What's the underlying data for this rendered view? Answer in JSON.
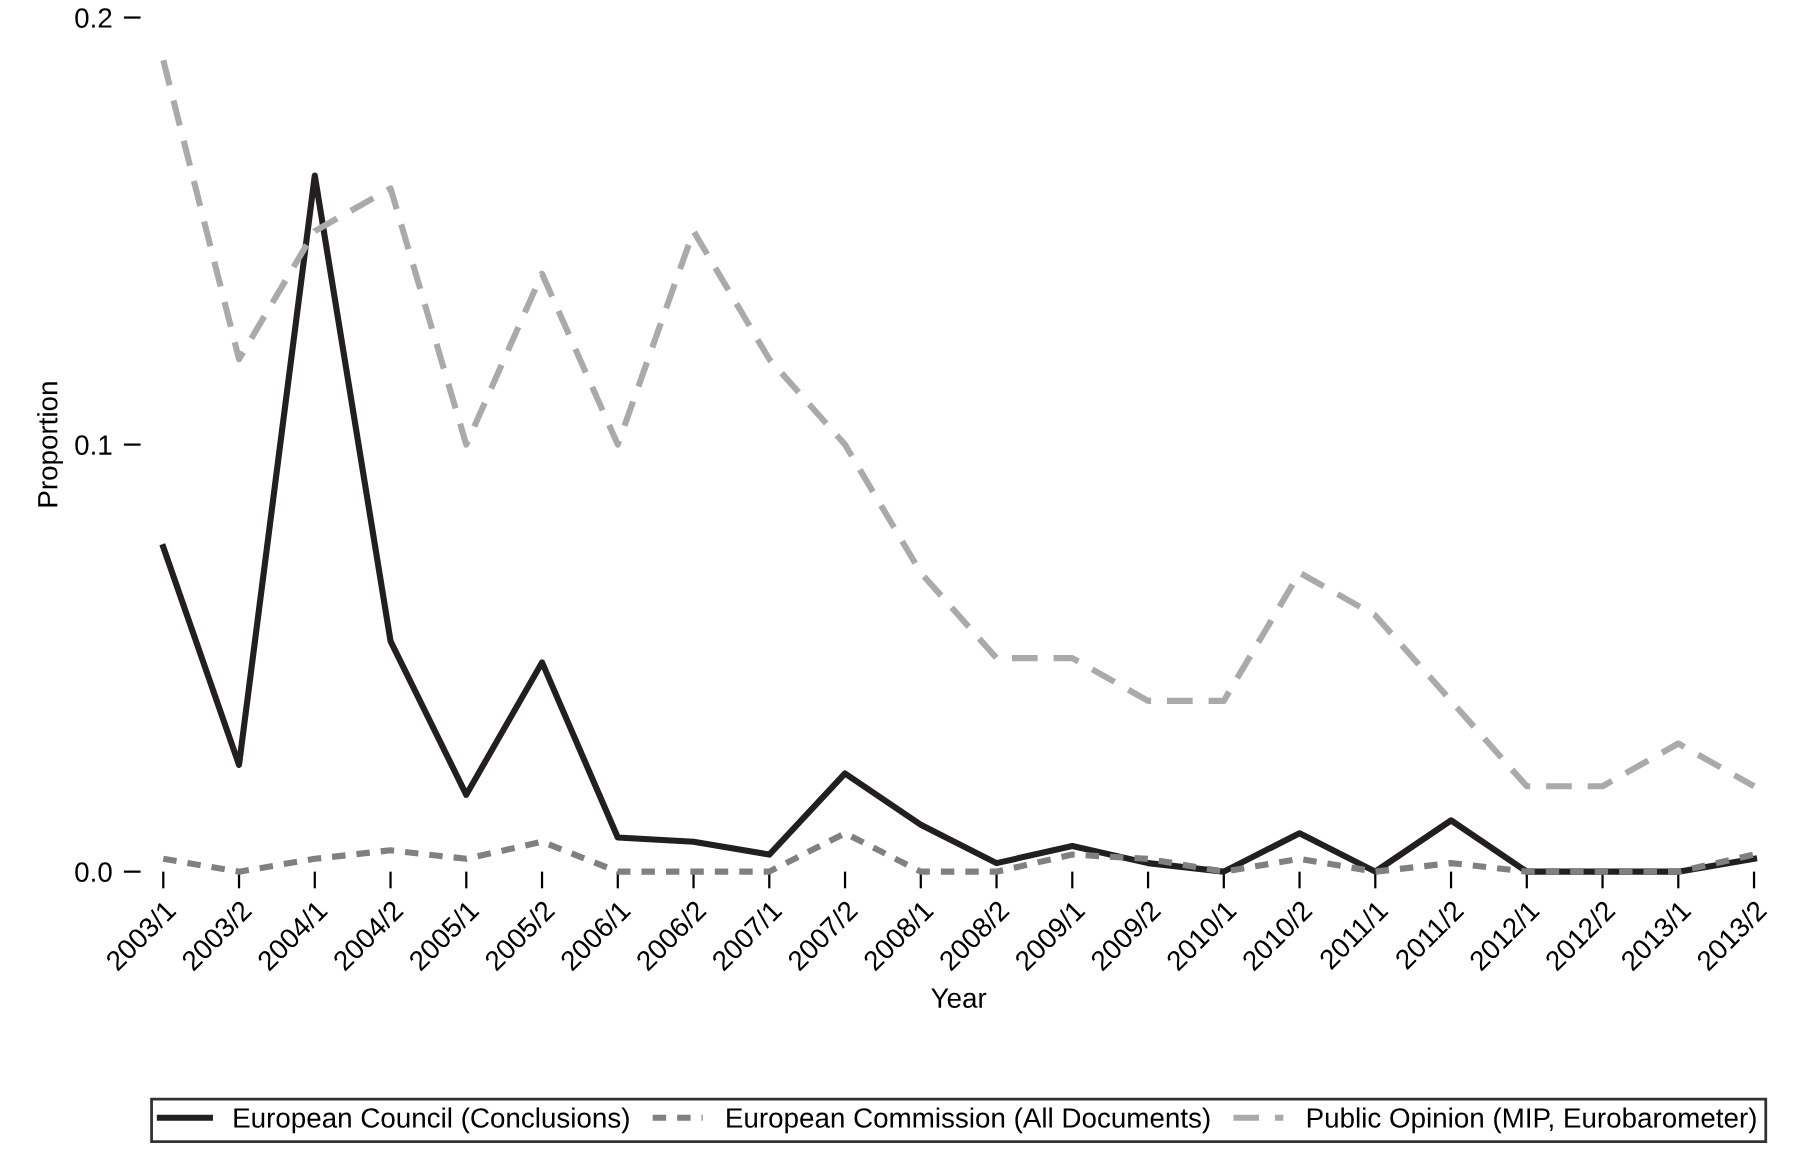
{
  "chart_data": {
    "type": "line",
    "xlabel": "Year",
    "ylabel": "Proportion",
    "categories": [
      "2003/1",
      "2003/2",
      "2004/1",
      "2004/2",
      "2005/1",
      "2005/2",
      "2006/1",
      "2006/2",
      "2007/1",
      "2007/2",
      "2008/1",
      "2008/2",
      "2009/1",
      "2009/2",
      "2010/1",
      "2010/2",
      "2011/1",
      "2011/2",
      "2012/1",
      "2012/2",
      "2013/1",
      "2013/2"
    ],
    "series": [
      {
        "name": "European Council (Conclusions)",
        "color": "#231f20",
        "line_style": "solid",
        "values": [
          0.076,
          0.025,
          0.163,
          0.054,
          0.018,
          0.049,
          0.008,
          0.007,
          0.004,
          0.023,
          0.011,
          0.002,
          0.006,
          0.002,
          0.0,
          0.009,
          0.0,
          0.012,
          0.0,
          0.0,
          0.0,
          0.003
        ]
      },
      {
        "name": "European Commission (All Documents)",
        "color": "#808080",
        "line_style": "dotted",
        "values": [
          0.003,
          0.0,
          0.003,
          0.005,
          0.003,
          0.007,
          0.0,
          0.0,
          0.0,
          0.009,
          0.0,
          0.0,
          0.004,
          0.003,
          0.0,
          0.003,
          0.0,
          0.002,
          0.0,
          0.0,
          0.0,
          0.004
        ]
      },
      {
        "name": "Public Opinion (MIP, Eurobarometer)",
        "color": "#aaaaaa",
        "line_style": "dashed",
        "values": [
          0.19,
          0.12,
          0.15,
          0.16,
          0.1,
          0.14,
          0.1,
          0.15,
          0.12,
          0.1,
          0.07,
          0.05,
          0.05,
          0.04,
          0.04,
          0.07,
          0.06,
          0.04,
          0.02,
          0.02,
          0.03,
          0.02
        ]
      }
    ],
    "ylim": [
      0,
      0.2
    ],
    "yticks": [
      {
        "value": 0,
        "label": "0.0"
      },
      0.1,
      0.2
    ],
    "grid": false,
    "legend": "bottom"
  }
}
